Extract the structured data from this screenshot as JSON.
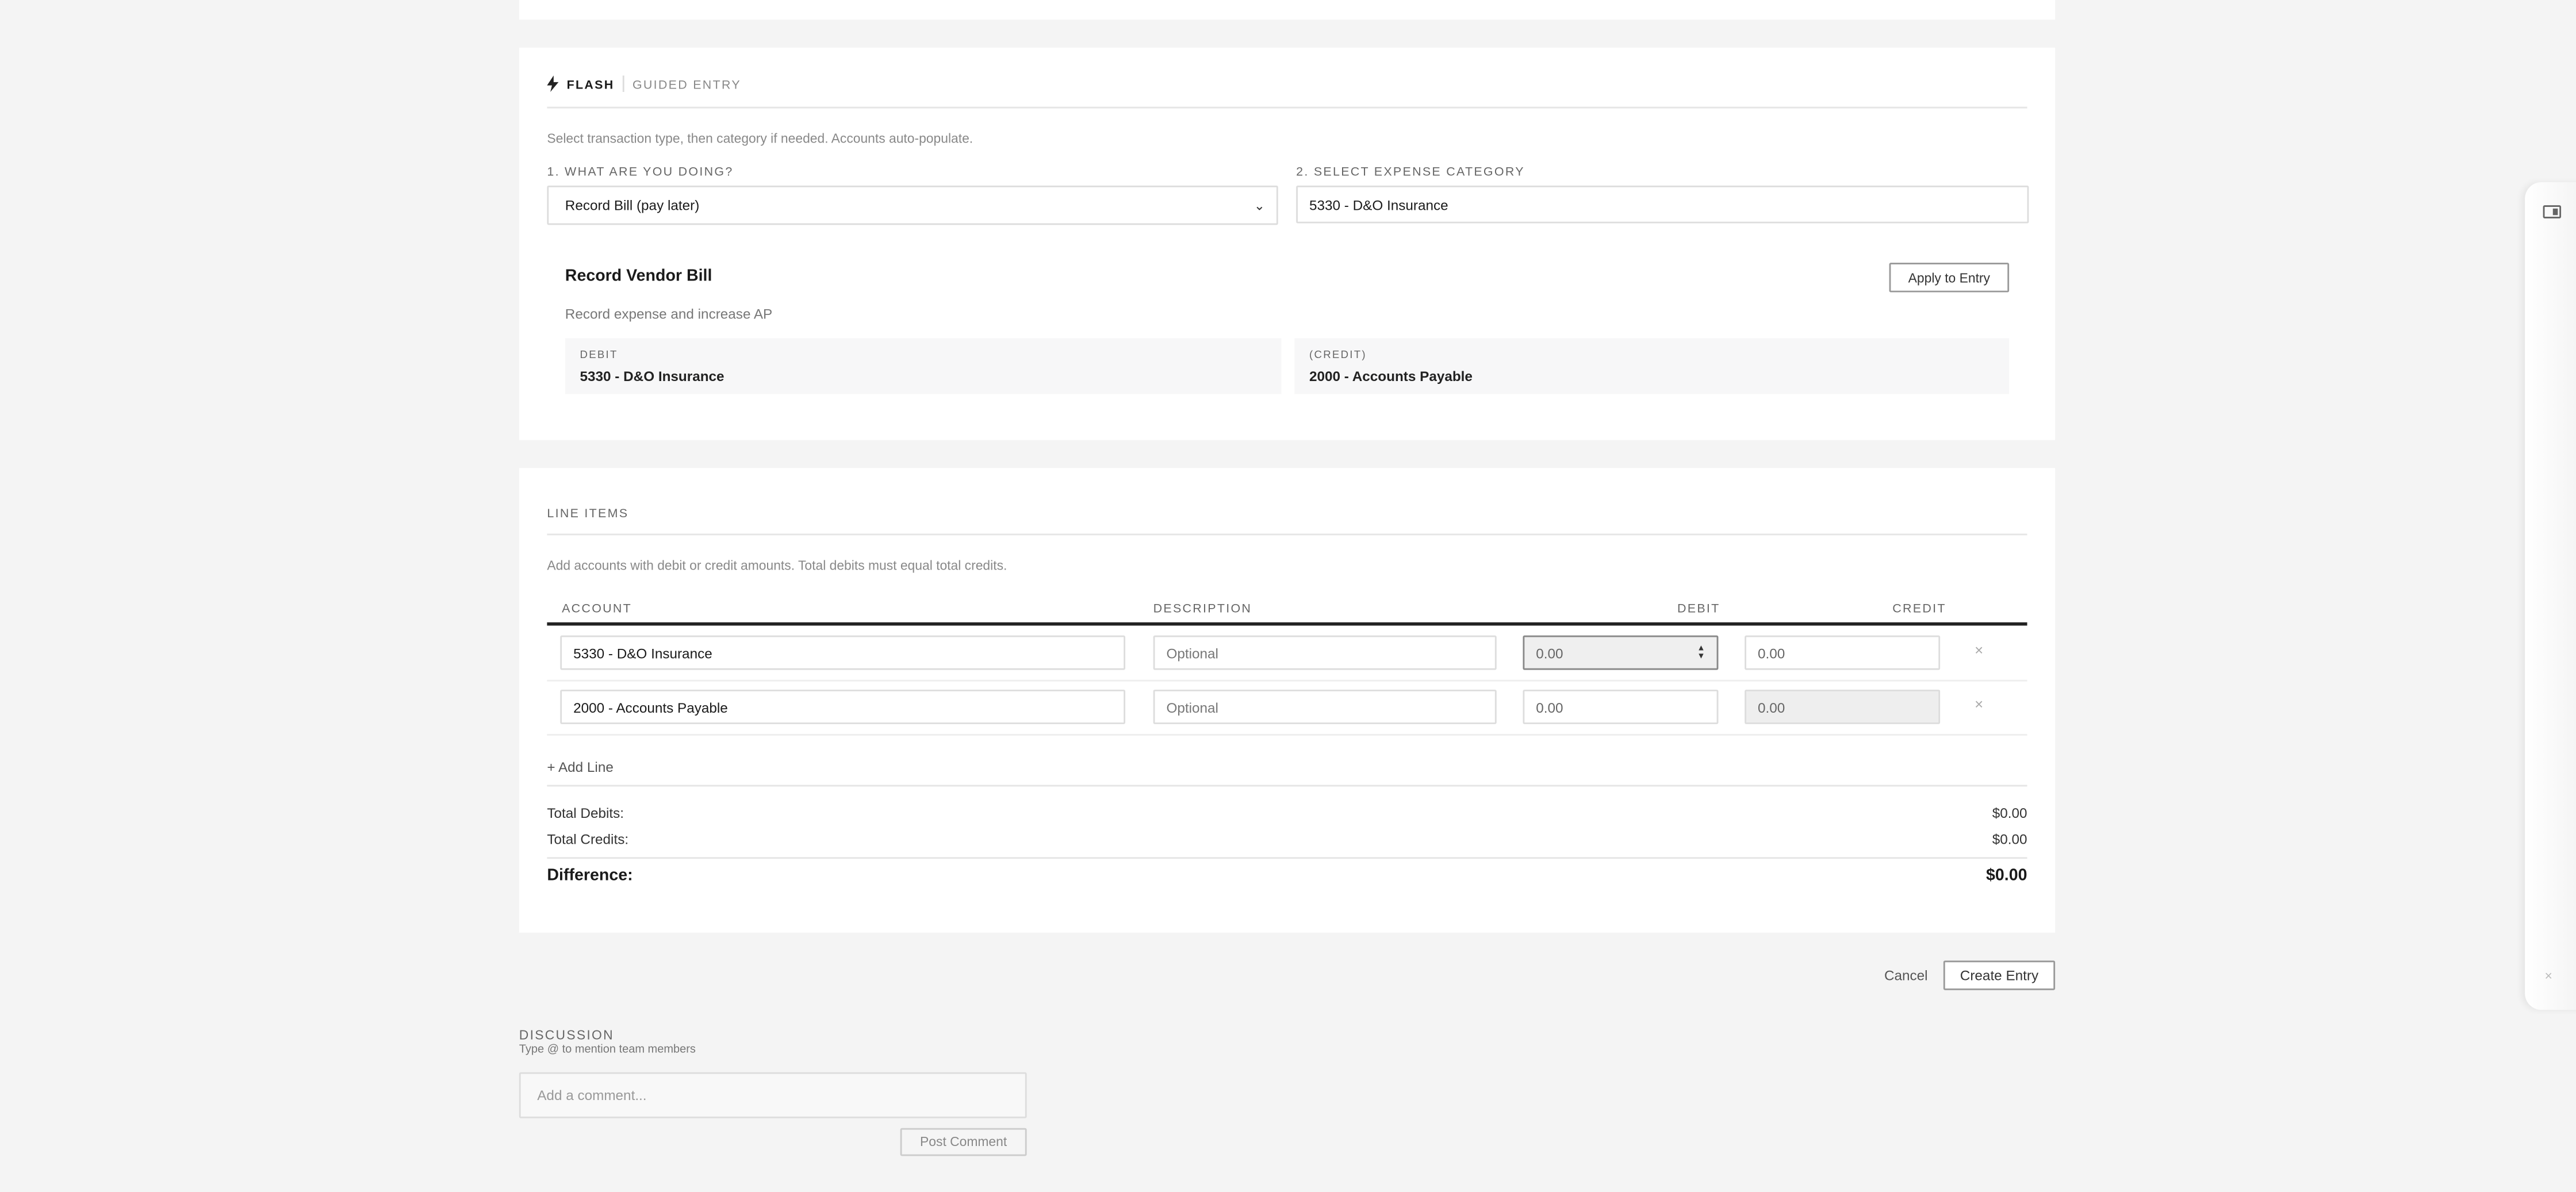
{
  "flash": {
    "mode_label": "FLASH",
    "mode_secondary": "GUIDED ENTRY",
    "instructions": "Select transaction type, then category if needed. Accounts auto-populate.",
    "step1_label": "1. WHAT ARE YOU DOING?",
    "step1_value": "Record Bill (pay later)",
    "step2_label": "2. SELECT EXPENSE CATEGORY",
    "step2_value": "5330 - D&O Insurance",
    "preview": {
      "title": "Record Vendor Bill",
      "description": "Record expense and increase AP",
      "apply_label": "Apply to Entry",
      "debit_label": "DEBIT",
      "debit_account": "5330 - D&O Insurance",
      "credit_label": "(CREDIT)",
      "credit_account": "2000 - Accounts Payable"
    }
  },
  "line_items": {
    "title": "LINE ITEMS",
    "instructions": "Add accounts with debit or credit amounts. Total debits must equal total credits.",
    "columns": {
      "account": "ACCOUNT",
      "description": "DESCRIPTION",
      "debit": "DEBIT",
      "credit": "CREDIT"
    },
    "rows": [
      {
        "account": "5330 - D&O Insurance",
        "description_placeholder": "Optional",
        "debit": "0.00",
        "credit": "0.00"
      },
      {
        "account": "2000 - Accounts Payable",
        "description_placeholder": "Optional",
        "debit": "0.00",
        "credit": "0.00"
      }
    ],
    "remove_icon": "×",
    "add_line": "+ Add Line",
    "totals": {
      "debits_label": "Total Debits:",
      "debits_value": "$0.00",
      "credits_label": "Total Credits:",
      "credits_value": "$0.00",
      "difference_label": "Difference:",
      "difference_value": "$0.00"
    }
  },
  "actions": {
    "cancel": "Cancel",
    "create": "Create Entry"
  },
  "discussion": {
    "title": "DISCUSSION",
    "hint": "Type @ to mention team members",
    "placeholder": "Add a comment...",
    "post": "Post Comment"
  },
  "side_panel": {
    "close_icon": "×"
  }
}
